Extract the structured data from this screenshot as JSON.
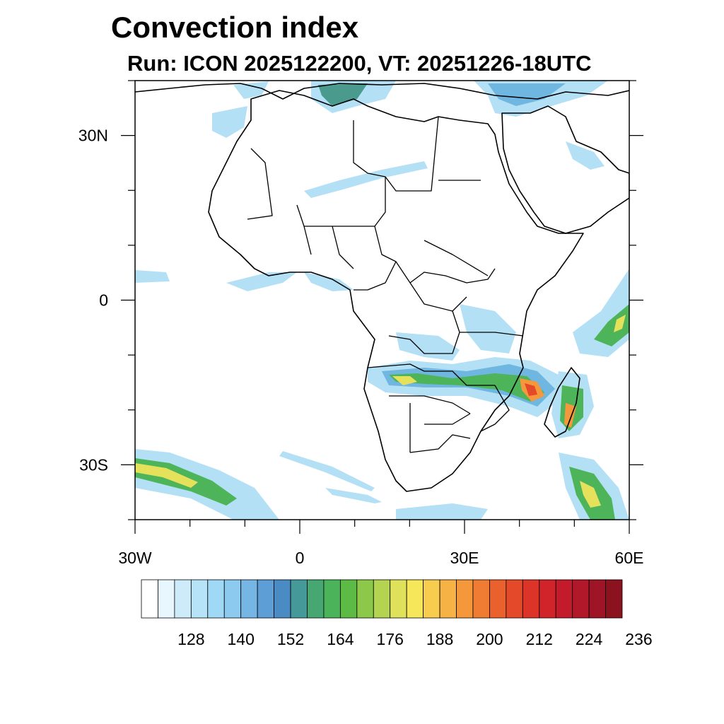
{
  "title": "Convection index",
  "subtitle": "Run: ICON 2025122200,  VT: 20251226-18UTC",
  "map": {
    "lon_range": [
      -30,
      60
    ],
    "lat_range": [
      -40,
      40
    ],
    "lon_ticks": [
      {
        "value": -30,
        "label": "30W"
      },
      {
        "value": 0,
        "label": "0"
      },
      {
        "value": 30,
        "label": "30E"
      },
      {
        "value": 60,
        "label": "60E"
      }
    ],
    "lat_ticks": [
      {
        "value": 30,
        "label": "30N"
      },
      {
        "value": 0,
        "label": "0"
      },
      {
        "value": -30,
        "label": "30S"
      }
    ],
    "ocean_color": "#ffffff",
    "coast_color": "#000000"
  },
  "colorbar": {
    "labels": [
      "128",
      "140",
      "152",
      "164",
      "176",
      "188",
      "200",
      "212",
      "224",
      "236"
    ],
    "colors": [
      "#ffffff",
      "#e8f6fd",
      "#cdebf9",
      "#b7e3f8",
      "#9fd9f5",
      "#8ccbef",
      "#76b6e4",
      "#5d9ed6",
      "#4a8bc4",
      "#469999",
      "#47a772",
      "#4bb45a",
      "#5cba45",
      "#8cc84a",
      "#b4d451",
      "#e0e15a",
      "#f6e65a",
      "#f8cc4f",
      "#f7b246",
      "#f5973b",
      "#f07c33",
      "#eb612d",
      "#e44a2a",
      "#dc3428",
      "#d1232a",
      "#c31b2b",
      "#b1182a",
      "#9d1526",
      "#8b1320"
    ]
  },
  "fields": {
    "light": "#b3e0f5",
    "medium": "#6fb6e0",
    "dark": "#4a9a8e",
    "green": "#4db45a",
    "yellow": "#e6e15a",
    "orange": "#f5973b",
    "red": "#e44a2a"
  }
}
